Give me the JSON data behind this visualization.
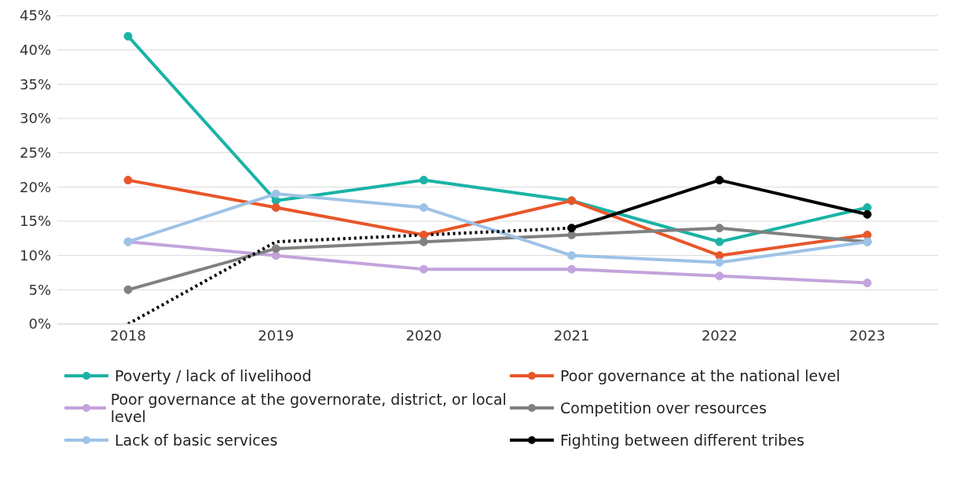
{
  "chart_data": {
    "type": "line",
    "categories": [
      "2018",
      "2019",
      "2020",
      "2021",
      "2022",
      "2023"
    ],
    "series": [
      {
        "name": "Poverty / lack of livelihood",
        "color": "#1ab3a6",
        "values": [
          42,
          18,
          21,
          18,
          12,
          17
        ]
      },
      {
        "name": "Poor governance at the national level",
        "color": "#e8562a",
        "values": [
          21,
          17,
          13,
          18,
          10,
          13
        ]
      },
      {
        "name": "Poor governance at the governorate, district, or local level",
        "color": "#c3a3db",
        "values": [
          12,
          10,
          8,
          8,
          7,
          6
        ]
      },
      {
        "name": "Competition over resources",
        "color": "#808080",
        "values": [
          5,
          11,
          12,
          13,
          14,
          12
        ]
      },
      {
        "name": "Lack of basic services",
        "color": "#9dc3e6",
        "values": [
          12,
          19,
          17,
          10,
          9,
          12
        ]
      },
      {
        "name": "Fighting between different tribes",
        "color": "#000000",
        "values": [
          null,
          null,
          null,
          14,
          21,
          16
        ]
      },
      {
        "color": "#000000",
        "line_style": "dotted",
        "marker": "none",
        "values": [
          0,
          12,
          13,
          14,
          null,
          null
        ]
      }
    ],
    "ylim": [
      0,
      45
    ],
    "yticks": [
      {
        "value": 0,
        "label": "0%"
      },
      {
        "value": 5,
        "label": "5%"
      },
      {
        "value": 10,
        "label": "10%"
      },
      {
        "value": 15,
        "label": "15%"
      },
      {
        "value": 20,
        "label": "20%"
      },
      {
        "value": 25,
        "label": "25%"
      },
      {
        "value": 30,
        "label": "30%"
      },
      {
        "value": 35,
        "label": "35%"
      },
      {
        "value": 40,
        "label": "40%"
      },
      {
        "value": 45,
        "label": "45%"
      }
    ],
    "grid": "y",
    "legend": "bottom",
    "marker": "circle",
    "line_style": "solid"
  }
}
